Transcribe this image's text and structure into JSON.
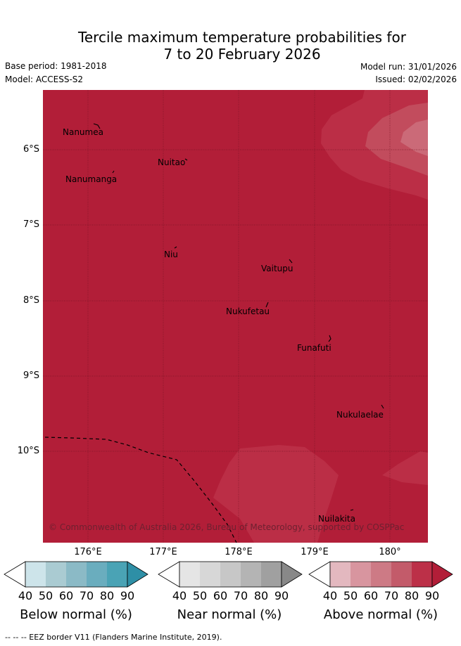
{
  "title": {
    "line1": "Tercile maximum temperature probabilities for",
    "line2": "7 to 20 February 2026"
  },
  "meta": {
    "base_period": "Base period: 1981-2018",
    "model": "Model: ACCESS-S2",
    "model_run": "Model run: 31/01/2026",
    "issued": "Issued: 02/02/2026"
  },
  "map": {
    "fill_color": "#b21e38",
    "latitude_labels": [
      "6°S",
      "7°S",
      "8°S",
      "9°S",
      "10°S"
    ],
    "longitude_labels": [
      "176°E",
      "177°E",
      "178°E",
      "179°E",
      "180°"
    ],
    "places": [
      "Nanumea",
      "Nuitao",
      "Nanumanga",
      "Niu",
      "Vaitupu",
      "Nukufetau",
      "Funafuti",
      "Nukulaelae",
      "Nuilakita"
    ],
    "copyright": "© Commonwealth of Australia 2026, Bureau of Meteorology, supported by COSPPac"
  },
  "colorbars": [
    {
      "label": "Below normal (%)",
      "ticks": [
        "40",
        "50",
        "60",
        "70",
        "80",
        "90"
      ],
      "colors": [
        "#ffffff",
        "#cde4ea",
        "#aacbd2",
        "#8bbac6",
        "#6aadbe",
        "#4aa3b5",
        "#2e8fa6"
      ]
    },
    {
      "label": "Near normal (%)",
      "ticks": [
        "40",
        "50",
        "60",
        "70",
        "80",
        "90"
      ],
      "colors": [
        "#ffffff",
        "#e5e5e5",
        "#d7d7d7",
        "#c7c7c7",
        "#b4b4b4",
        "#a0a0a0",
        "#888888"
      ]
    },
    {
      "label": "Above normal (%)",
      "ticks": [
        "40",
        "50",
        "60",
        "70",
        "80",
        "90"
      ],
      "colors": [
        "#ffffff",
        "#e3b8bf",
        "#d8959f",
        "#cd7a85",
        "#c35b6a",
        "#bc3048",
        "#b21e38"
      ]
    }
  ],
  "footer": "-- -- -- EEZ border V11 (Flanders Marine Institute, 2019)."
}
